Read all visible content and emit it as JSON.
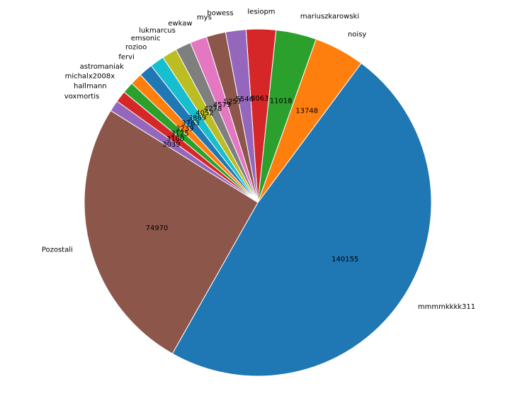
{
  "chart_data": {
    "type": "pie",
    "title": "",
    "slices": [
      {
        "label": "mmmmkkkk311",
        "value": 140155,
        "color": "#1f77b4"
      },
      {
        "label": "noisy",
        "value": 13748,
        "color": "#ff7f0e"
      },
      {
        "label": "mariuszkarowski",
        "value": 11018,
        "color": "#2ca02c"
      },
      {
        "label": "lesiopm",
        "value": 8063,
        "color": "#d62728"
      },
      {
        "label": "bowess",
        "value": 5546,
        "color": "#9467bd"
      },
      {
        "label": "mys",
        "value": 5257,
        "color": "#8c564b"
      },
      {
        "label": "ewkaw",
        "value": 4579,
        "color": "#e377c2"
      },
      {
        "label": "lukmarcus",
        "value": 4278,
        "color": "#7f7f7f"
      },
      {
        "label": "emsonic",
        "value": 4052,
        "color": "#bcbd22"
      },
      {
        "label": "rozioo",
        "value": 3869,
        "color": "#17becf"
      },
      {
        "label": "fervi",
        "value": 3763,
        "color": "#1f77b4"
      },
      {
        "label": "astromaniak",
        "value": 3239,
        "color": "#ff7f0e"
      },
      {
        "label": "michalx2008x",
        "value": 3125,
        "color": "#2ca02c"
      },
      {
        "label": "hallmann",
        "value": 3100,
        "color": "#d62728"
      },
      {
        "label": "voxmortis",
        "value": 3039,
        "color": "#9467bd"
      },
      {
        "label": "Pozostali",
        "value": 74970,
        "color": "#8c564b"
      }
    ],
    "value_labels": "absolute",
    "legend": "none"
  }
}
